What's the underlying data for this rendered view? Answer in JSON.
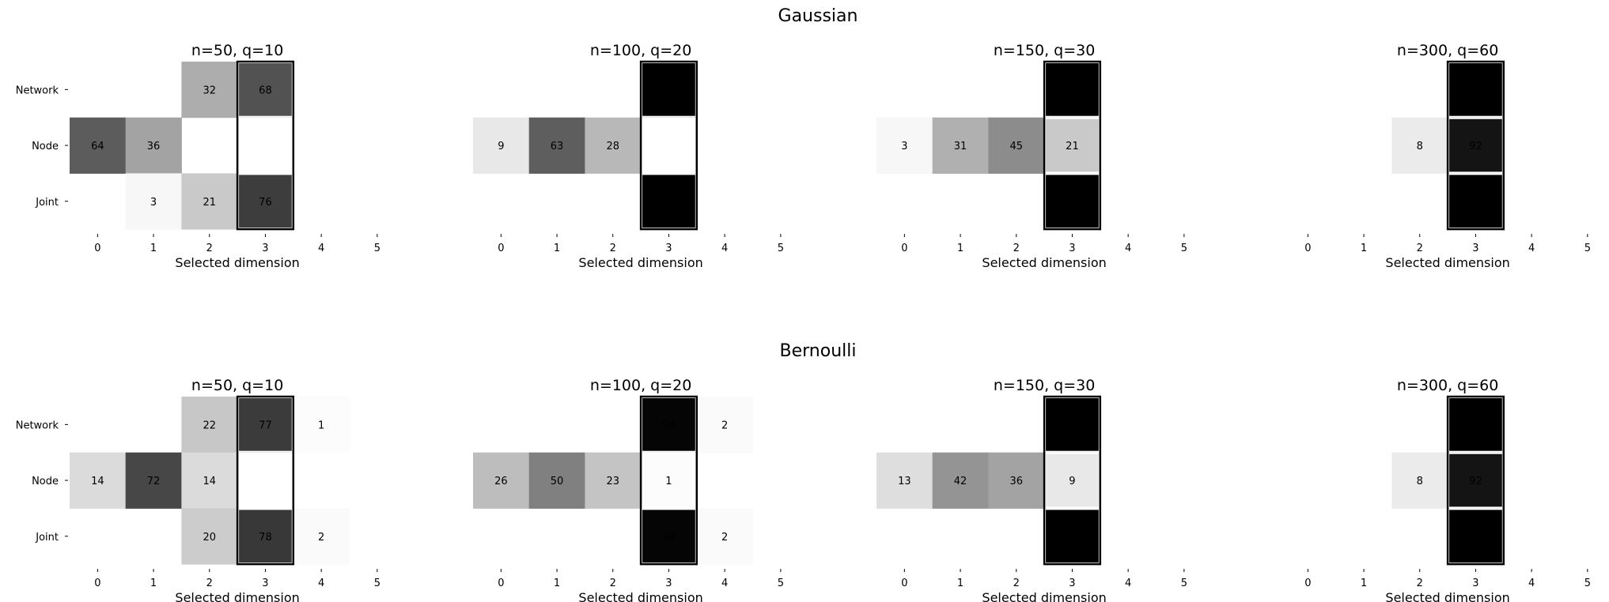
{
  "chart_data": [
    {
      "section": "Gaussian",
      "type": "heatmap",
      "rows": [
        "Network",
        "Node",
        "Joint"
      ],
      "columns": [
        "0",
        "1",
        "2",
        "3",
        "4",
        "5"
      ],
      "xlabel": "Selected dimension",
      "panels": [
        {
          "title": "n=50, q=10",
          "values": [
            [
              0,
              0,
              32,
              68,
              0,
              0
            ],
            [
              64,
              36,
              0,
              0,
              0,
              0
            ],
            [
              0,
              3,
              21,
              76,
              0,
              0
            ]
          ]
        },
        {
          "title": "n=100, q=20",
          "values": [
            [
              0,
              0,
              0,
              100,
              0,
              0
            ],
            [
              9,
              63,
              28,
              0,
              0,
              0
            ],
            [
              0,
              0,
              0,
              100,
              0,
              0
            ]
          ]
        },
        {
          "title": "n=150, q=30",
          "values": [
            [
              0,
              0,
              0,
              100,
              0,
              0
            ],
            [
              3,
              31,
              45,
              21,
              0,
              0
            ],
            [
              0,
              0,
              0,
              100,
              0,
              0
            ]
          ]
        },
        {
          "title": "n=300, q=60",
          "values": [
            [
              0,
              0,
              0,
              100,
              0,
              0
            ],
            [
              0,
              0,
              8,
              92,
              0,
              0
            ],
            [
              0,
              0,
              0,
              100,
              0,
              0
            ]
          ]
        }
      ]
    },
    {
      "section": "Bernoulli",
      "type": "heatmap",
      "rows": [
        "Network",
        "Node",
        "Joint"
      ],
      "columns": [
        "0",
        "1",
        "2",
        "3",
        "4",
        "5"
      ],
      "xlabel": "Selected dimension",
      "panels": [
        {
          "title": "n=50, q=10",
          "values": [
            [
              0,
              0,
              22,
              77,
              1,
              0
            ],
            [
              14,
              72,
              14,
              0,
              0,
              0
            ],
            [
              0,
              0,
              20,
              78,
              2,
              0
            ]
          ]
        },
        {
          "title": "n=100, q=20",
          "values": [
            [
              0,
              0,
              0,
              98,
              2,
              0
            ],
            [
              26,
              50,
              23,
              1,
              0,
              0
            ],
            [
              0,
              0,
              0,
              98,
              2,
              0
            ]
          ]
        },
        {
          "title": "n=150, q=30",
          "values": [
            [
              0,
              0,
              0,
              100,
              0,
              0
            ],
            [
              13,
              42,
              36,
              9,
              0,
              0
            ],
            [
              0,
              0,
              0,
              100,
              0,
              0
            ]
          ]
        },
        {
          "title": "n=300, q=60",
          "values": [
            [
              0,
              0,
              0,
              100,
              0,
              0
            ],
            [
              0,
              0,
              8,
              92,
              0,
              0
            ],
            [
              0,
              0,
              0,
              100,
              0,
              0
            ]
          ]
        }
      ]
    }
  ],
  "highlight_column": 3,
  "colors": {
    "low": "#ffffff",
    "high": "#000000",
    "border": "#000000"
  }
}
